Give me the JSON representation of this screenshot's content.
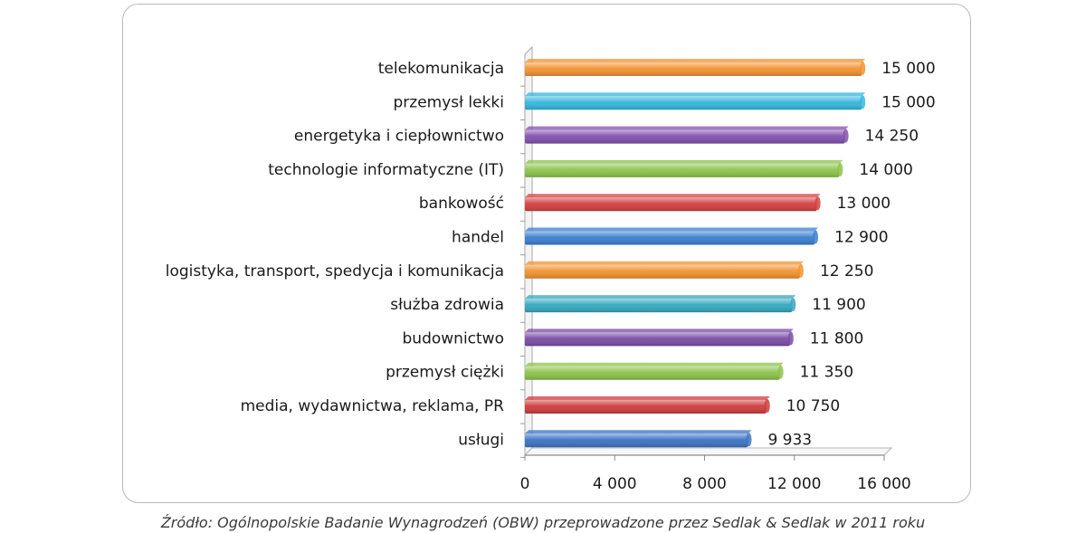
{
  "chart_data": {
    "type": "bar",
    "orientation": "horizontal",
    "categories": [
      "telekomunikacja",
      "przemysł lekki",
      "energetyka i ciepłownictwo",
      "technologie informatyczne (IT)",
      "bankowość",
      "handel",
      "logistyka, transport, spedycja i komunikacja",
      "służba zdrowia",
      "budownictwo",
      "przemysł ciężki",
      "media, wydawnictwa, reklama, PR",
      "usługi"
    ],
    "values": [
      15000,
      15000,
      14250,
      14000,
      13000,
      12900,
      12250,
      11900,
      11800,
      11350,
      10750,
      9933
    ],
    "value_labels": [
      "15 000",
      "15 000",
      "14 250",
      "14 000",
      "13 000",
      "12 900",
      "12 250",
      "11 900",
      "11 800",
      "11 350",
      "10 750",
      "9 933"
    ],
    "bar_colors": [
      "#f2922f",
      "#35b6dc",
      "#8250ae",
      "#8cc349",
      "#d3403f",
      "#3a7fd0",
      "#f2922f",
      "#33a8c0",
      "#7a4aa6",
      "#8cc349",
      "#cf3b3b",
      "#3a73c4"
    ],
    "xlim": [
      0,
      16000
    ],
    "ticks": [
      0,
      4000,
      8000,
      12000,
      16000
    ],
    "tick_labels": [
      "0",
      "4 000",
      "8 000",
      "12 000",
      "16 000"
    ],
    "grid": false,
    "legend": "none",
    "source": "Źródło: Ogólnopolskie Badanie Wynagrodzeń (OBW) przeprowadzone przez Sedlak & Sedlak w 2011 roku"
  }
}
